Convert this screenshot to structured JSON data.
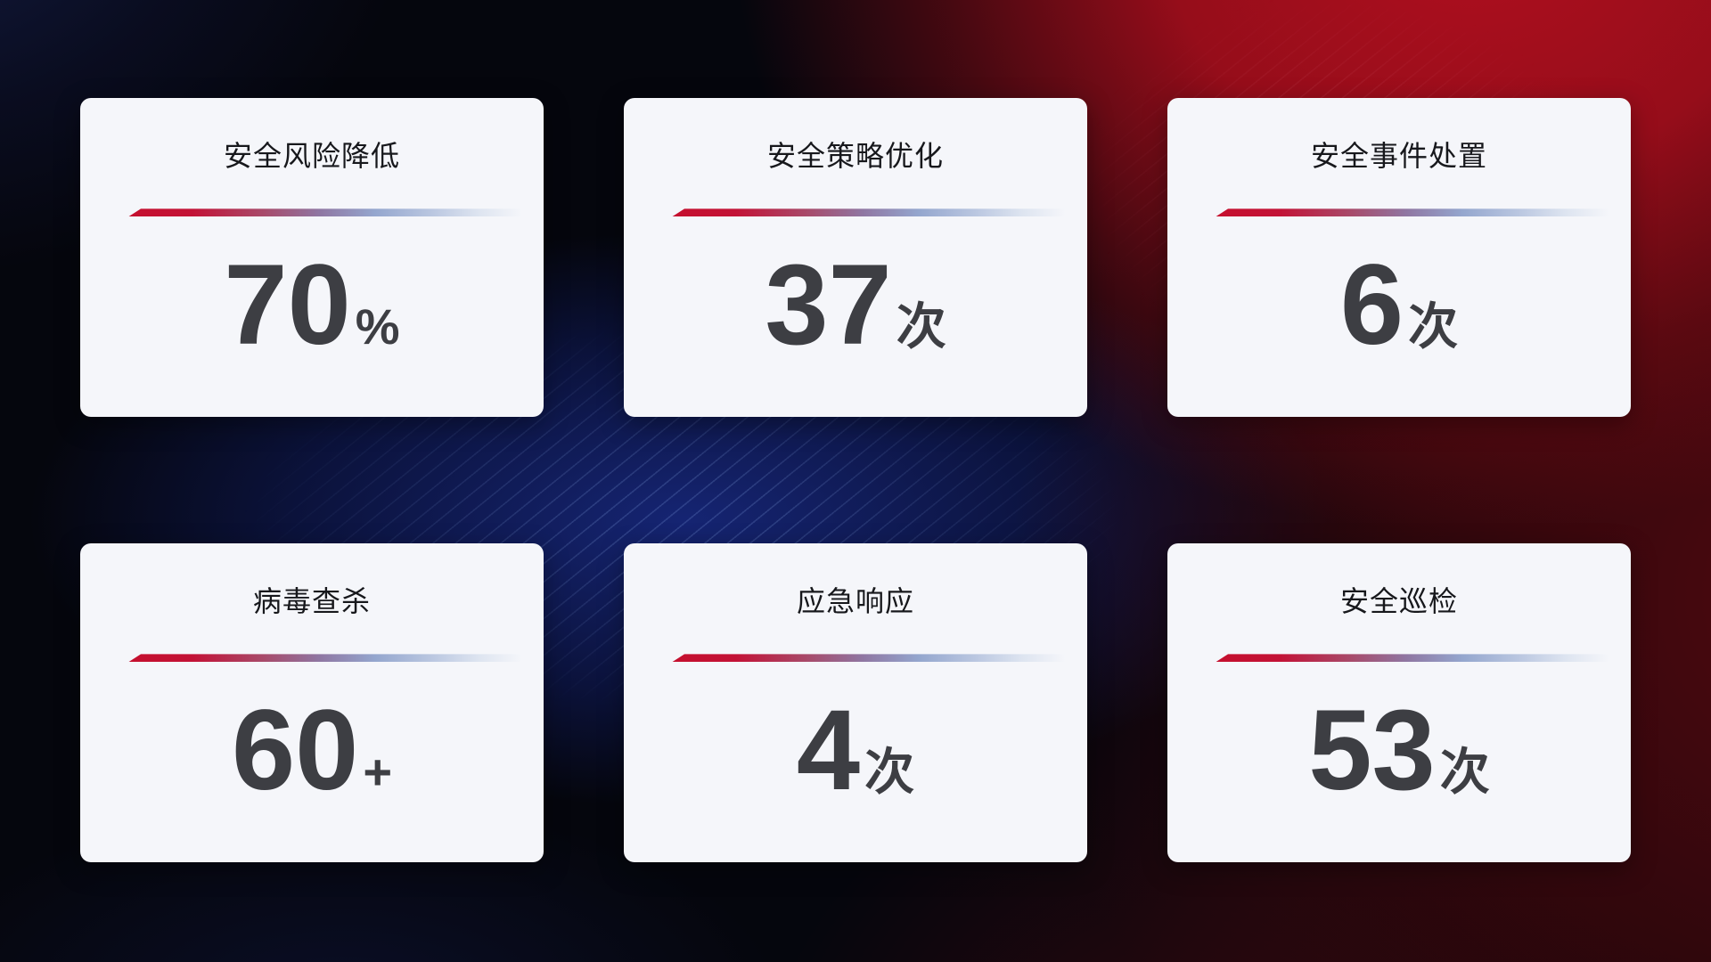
{
  "colors": {
    "background_base": "#05060d",
    "background_red_bright": "#b00f1f",
    "background_red_dark": "#3a070c",
    "background_navy": "#141c44",
    "background_beam_blue": "#16267a",
    "card_background": "#f5f6fa",
    "title_text": "#17181c",
    "value_text": "#3d3e43",
    "divider_red": "#c50f2e",
    "divider_blue": "#94a6ce",
    "divider_light": "#dde4f0"
  },
  "cards": [
    {
      "title": "安全风险降低",
      "value": "70",
      "unit": "%"
    },
    {
      "title": "安全策略优化",
      "value": "37",
      "unit": "次"
    },
    {
      "title": "安全事件处置",
      "value": "6",
      "unit": "次"
    },
    {
      "title": "病毒查杀",
      "value": "60",
      "unit": "+"
    },
    {
      "title": "应急响应",
      "value": "4",
      "unit": "次"
    },
    {
      "title": "安全巡检",
      "value": "53",
      "unit": "次"
    }
  ]
}
